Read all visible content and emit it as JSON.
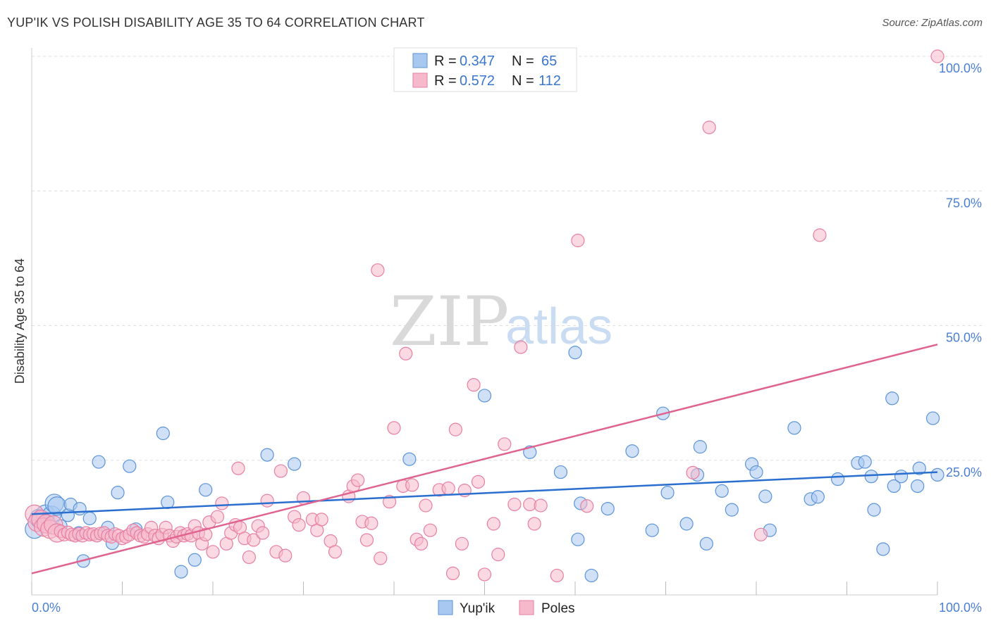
{
  "header": {
    "title": "YUP'IK VS POLISH DISABILITY AGE 35 TO 64 CORRELATION CHART",
    "source": "Source: ZipAtlas.com"
  },
  "watermark": {
    "zip": "ZIP",
    "atlas": "atlas"
  },
  "legend_top": {
    "rows": [
      {
        "r_label": "R =",
        "r_value": "0.347",
        "n_label": "N =",
        "n_value": "65"
      },
      {
        "r_label": "R =",
        "r_value": "0.572",
        "n_label": "N =",
        "n_value": "112"
      }
    ]
  },
  "legend_bottom": {
    "items": [
      "Yup'ik",
      "Poles"
    ]
  },
  "colors": {
    "blue_fill": "#a9c8f0",
    "blue_stroke": "#5b93d9",
    "blue_line": "#2a6fcf",
    "pink_fill": "#f6b9cc",
    "pink_stroke": "#e77fa2",
    "pink_line": "#e0628e",
    "tick_text": "#4a7fd4",
    "grid": "#dddddd"
  },
  "chart_data": {
    "type": "scatter",
    "title": "YUP'IK VS POLISH DISABILITY AGE 35 TO 64 CORRELATION CHART",
    "xlabel": "",
    "ylabel": "Disability Age 35 to 64",
    "xlim": [
      0,
      100
    ],
    "ylim": [
      0,
      100
    ],
    "x_tick_labels": [
      "0.0%",
      "100.0%"
    ],
    "y_tick_labels": [
      "100.0%",
      "75.0%",
      "50.0%",
      "25.0%"
    ],
    "y_tick_values": [
      100,
      75,
      50,
      25
    ],
    "grid": true,
    "legend_position": "top-center",
    "series": [
      {
        "name": "Yup'ik",
        "color": "#a9c8f0",
        "r": 0.347,
        "n": 65,
        "trend": {
          "x": [
            0,
            100
          ],
          "y": [
            15.0,
            22.8
          ]
        },
        "points": [
          {
            "x": 0.3,
            "y": 12.2
          },
          {
            "x": 0.8,
            "y": 14.2
          },
          {
            "x": 1.5,
            "y": 15.0
          },
          {
            "x": 2.2,
            "y": 14.8
          },
          {
            "x": 2.5,
            "y": 17.0
          },
          {
            "x": 2.8,
            "y": 16.5
          },
          {
            "x": 3.2,
            "y": 12.8
          },
          {
            "x": 4.0,
            "y": 14.8
          },
          {
            "x": 4.3,
            "y": 16.8
          },
          {
            "x": 5.2,
            "y": 11.5
          },
          {
            "x": 5.3,
            "y": 16.0
          },
          {
            "x": 5.7,
            "y": 6.3
          },
          {
            "x": 6.4,
            "y": 14.2
          },
          {
            "x": 7.4,
            "y": 24.7
          },
          {
            "x": 8.4,
            "y": 12.5
          },
          {
            "x": 8.9,
            "y": 9.6
          },
          {
            "x": 9.5,
            "y": 19.0
          },
          {
            "x": 10.8,
            "y": 23.9
          },
          {
            "x": 11.5,
            "y": 12.2
          },
          {
            "x": 14.5,
            "y": 30.0
          },
          {
            "x": 15.0,
            "y": 17.2
          },
          {
            "x": 16.5,
            "y": 4.3
          },
          {
            "x": 18.0,
            "y": 6.5
          },
          {
            "x": 19.2,
            "y": 19.5
          },
          {
            "x": 26.0,
            "y": 26.0
          },
          {
            "x": 29.0,
            "y": 24.3
          },
          {
            "x": 41.7,
            "y": 25.2
          },
          {
            "x": 50.0,
            "y": 37.0
          },
          {
            "x": 55.0,
            "y": 26.5
          },
          {
            "x": 58.4,
            "y": 22.8
          },
          {
            "x": 60.0,
            "y": 45.0
          },
          {
            "x": 60.3,
            "y": 10.3
          },
          {
            "x": 60.6,
            "y": 17.0
          },
          {
            "x": 61.8,
            "y": 3.6
          },
          {
            "x": 63.6,
            "y": 16.0
          },
          {
            "x": 66.3,
            "y": 26.7
          },
          {
            "x": 68.5,
            "y": 12.0
          },
          {
            "x": 69.7,
            "y": 33.7
          },
          {
            "x": 70.2,
            "y": 19.0
          },
          {
            "x": 72.3,
            "y": 13.2
          },
          {
            "x": 73.5,
            "y": 22.3
          },
          {
            "x": 73.8,
            "y": 27.5
          },
          {
            "x": 74.5,
            "y": 9.5
          },
          {
            "x": 76.2,
            "y": 19.3
          },
          {
            "x": 77.3,
            "y": 15.8
          },
          {
            "x": 79.5,
            "y": 24.3
          },
          {
            "x": 80.0,
            "y": 22.8
          },
          {
            "x": 81.0,
            "y": 18.3
          },
          {
            "x": 81.5,
            "y": 12.0
          },
          {
            "x": 84.2,
            "y": 31.0
          },
          {
            "x": 86.0,
            "y": 17.8
          },
          {
            "x": 86.8,
            "y": 18.2
          },
          {
            "x": 89.0,
            "y": 21.5
          },
          {
            "x": 91.2,
            "y": 24.5
          },
          {
            "x": 92.0,
            "y": 24.7
          },
          {
            "x": 92.7,
            "y": 22.0
          },
          {
            "x": 93.0,
            "y": 15.8
          },
          {
            "x": 94.0,
            "y": 8.5
          },
          {
            "x": 95.0,
            "y": 36.5
          },
          {
            "x": 95.2,
            "y": 20.2
          },
          {
            "x": 96.0,
            "y": 22.0
          },
          {
            "x": 97.8,
            "y": 20.2
          },
          {
            "x": 98.0,
            "y": 23.5
          },
          {
            "x": 99.5,
            "y": 32.8
          },
          {
            "x": 100.0,
            "y": 22.3
          }
        ]
      },
      {
        "name": "Poles",
        "color": "#f6b9cc",
        "r": 0.572,
        "n": 112,
        "trend": {
          "x": [
            0,
            100
          ],
          "y": [
            4.0,
            46.5
          ]
        },
        "points": [
          {
            "x": 0.3,
            "y": 15.0
          },
          {
            "x": 0.6,
            "y": 13.5
          },
          {
            "x": 1.0,
            "y": 14.0
          },
          {
            "x": 1.3,
            "y": 12.6
          },
          {
            "x": 1.6,
            "y": 13.2
          },
          {
            "x": 2.0,
            "y": 12.2
          },
          {
            "x": 2.4,
            "y": 13.0
          },
          {
            "x": 2.8,
            "y": 11.5
          },
          {
            "x": 3.2,
            "y": 11.8
          },
          {
            "x": 3.6,
            "y": 11.2
          },
          {
            "x": 4.0,
            "y": 11.6
          },
          {
            "x": 4.4,
            "y": 11.2
          },
          {
            "x": 4.8,
            "y": 11.0
          },
          {
            "x": 5.2,
            "y": 11.3
          },
          {
            "x": 5.6,
            "y": 11.0
          },
          {
            "x": 6.0,
            "y": 11.5
          },
          {
            "x": 6.4,
            "y": 11.2
          },
          {
            "x": 6.8,
            "y": 11.3
          },
          {
            "x": 7.2,
            "y": 11.0
          },
          {
            "x": 7.6,
            "y": 11.4
          },
          {
            "x": 8.0,
            "y": 11.5
          },
          {
            "x": 8.4,
            "y": 11.0
          },
          {
            "x": 8.8,
            "y": 10.8
          },
          {
            "x": 9.2,
            "y": 11.3
          },
          {
            "x": 9.6,
            "y": 11.0
          },
          {
            "x": 10.0,
            "y": 10.5
          },
          {
            "x": 10.4,
            "y": 10.8
          },
          {
            "x": 10.8,
            "y": 11.2
          },
          {
            "x": 11.2,
            "y": 12.0
          },
          {
            "x": 11.6,
            "y": 11.5
          },
          {
            "x": 12.0,
            "y": 11.0
          },
          {
            "x": 12.4,
            "y": 10.8
          },
          {
            "x": 12.8,
            "y": 11.3
          },
          {
            "x": 13.2,
            "y": 12.5
          },
          {
            "x": 13.6,
            "y": 11.0
          },
          {
            "x": 14.0,
            "y": 10.5
          },
          {
            "x": 14.4,
            "y": 11.2
          },
          {
            "x": 14.8,
            "y": 12.5
          },
          {
            "x": 15.2,
            "y": 11.0
          },
          {
            "x": 15.6,
            "y": 10.0
          },
          {
            "x": 16.0,
            "y": 10.8
          },
          {
            "x": 16.4,
            "y": 11.5
          },
          {
            "x": 16.8,
            "y": 11.0
          },
          {
            "x": 17.2,
            "y": 11.3
          },
          {
            "x": 17.6,
            "y": 11.0
          },
          {
            "x": 18.0,
            "y": 12.8
          },
          {
            "x": 18.4,
            "y": 11.5
          },
          {
            "x": 18.8,
            "y": 9.5
          },
          {
            "x": 19.2,
            "y": 11.2
          },
          {
            "x": 19.6,
            "y": 13.5
          },
          {
            "x": 20.0,
            "y": 8.0
          },
          {
            "x": 20.5,
            "y": 14.5
          },
          {
            "x": 21.0,
            "y": 17.0
          },
          {
            "x": 21.5,
            "y": 9.5
          },
          {
            "x": 22.0,
            "y": 11.5
          },
          {
            "x": 22.5,
            "y": 13.0
          },
          {
            "x": 23.0,
            "y": 12.5
          },
          {
            "x": 23.5,
            "y": 10.5
          },
          {
            "x": 24.0,
            "y": 7.0
          },
          {
            "x": 24.5,
            "y": 10.2
          },
          {
            "x": 25.0,
            "y": 12.8
          },
          {
            "x": 25.5,
            "y": 11.5
          },
          {
            "x": 26.0,
            "y": 17.5
          },
          {
            "x": 27.0,
            "y": 8.0
          },
          {
            "x": 27.5,
            "y": 23.0
          },
          {
            "x": 28.0,
            "y": 7.3
          },
          {
            "x": 29.0,
            "y": 14.5
          },
          {
            "x": 29.5,
            "y": 13.0
          },
          {
            "x": 30.0,
            "y": 18.0
          },
          {
            "x": 31.0,
            "y": 14.0
          },
          {
            "x": 31.5,
            "y": 12.0
          },
          {
            "x": 32.0,
            "y": 14.0
          },
          {
            "x": 33.0,
            "y": 10.0
          },
          {
            "x": 33.5,
            "y": 8.0
          },
          {
            "x": 35.0,
            "y": 18.3
          },
          {
            "x": 35.5,
            "y": 20.2
          },
          {
            "x": 36.0,
            "y": 21.3
          },
          {
            "x": 36.5,
            "y": 13.6
          },
          {
            "x": 37.0,
            "y": 10.2
          },
          {
            "x": 37.5,
            "y": 13.3
          },
          {
            "x": 38.2,
            "y": 60.3
          },
          {
            "x": 38.5,
            "y": 6.8
          },
          {
            "x": 39.5,
            "y": 17.3
          },
          {
            "x": 40.0,
            "y": 31.0
          },
          {
            "x": 41.0,
            "y": 20.2
          },
          {
            "x": 41.3,
            "y": 44.8
          },
          {
            "x": 42.0,
            "y": 20.4
          },
          {
            "x": 42.5,
            "y": 10.3
          },
          {
            "x": 43.0,
            "y": 9.5
          },
          {
            "x": 43.5,
            "y": 16.6
          },
          {
            "x": 44.0,
            "y": 12.0
          },
          {
            "x": 45.0,
            "y": 19.5
          },
          {
            "x": 46.0,
            "y": 19.8
          },
          {
            "x": 46.5,
            "y": 4.0
          },
          {
            "x": 46.8,
            "y": 30.7
          },
          {
            "x": 47.5,
            "y": 9.5
          },
          {
            "x": 47.8,
            "y": 19.4
          },
          {
            "x": 48.8,
            "y": 39.0
          },
          {
            "x": 49.3,
            "y": 21.0
          },
          {
            "x": 50.0,
            "y": 3.8
          },
          {
            "x": 51.0,
            "y": 13.2
          },
          {
            "x": 51.5,
            "y": 7.5
          },
          {
            "x": 52.2,
            "y": 28.0
          },
          {
            "x": 53.3,
            "y": 16.8
          },
          {
            "x": 54.0,
            "y": 46.0
          },
          {
            "x": 55.0,
            "y": 16.8
          },
          {
            "x": 55.5,
            "y": 13.2
          },
          {
            "x": 56.2,
            "y": 16.6
          },
          {
            "x": 58.0,
            "y": 3.6
          },
          {
            "x": 60.3,
            "y": 65.8
          },
          {
            "x": 61.3,
            "y": 16.5
          },
          {
            "x": 74.8,
            "y": 86.8
          },
          {
            "x": 80.5,
            "y": 11.2
          },
          {
            "x": 87.0,
            "y": 66.8
          },
          {
            "x": 100.0,
            "y": 100.0
          },
          {
            "x": 73.0,
            "y": 22.7
          },
          {
            "x": 22.8,
            "y": 23.5
          }
        ]
      }
    ]
  }
}
